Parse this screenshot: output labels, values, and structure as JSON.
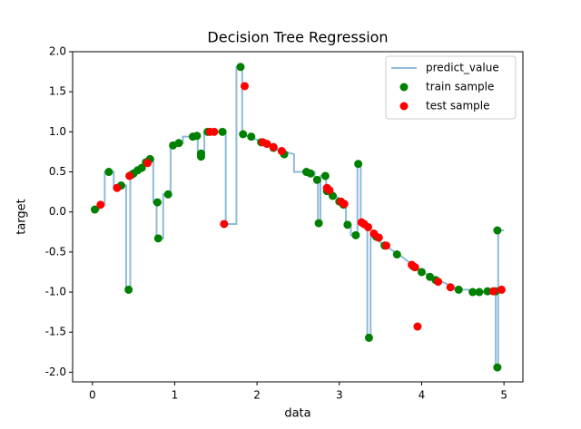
{
  "chart_data": {
    "type": "combo",
    "title": "Decision Tree Regression",
    "x_label": "data",
    "y_label": "target",
    "xlim": [
      -0.24,
      5.23
    ],
    "ylim": [
      -2.12,
      2.0
    ],
    "xticks": [
      0,
      1,
      2,
      3,
      4,
      5
    ],
    "yticks": [
      {
        "value": -2,
        "label": "-2.0"
      },
      -1.5,
      {
        "value": -1,
        "label": "-1.0"
      },
      -0.5,
      {
        "value": 0,
        "label": "0.0"
      },
      0.5,
      {
        "value": 1,
        "label": "1.0"
      },
      1.5,
      {
        "value": 2,
        "label": "2.0"
      }
    ],
    "legend": "upper right",
    "series": [
      {
        "name": "predict_value",
        "type": "line",
        "color": "#1f77b4",
        "x": [
          0,
          0.08,
          0.08,
          0.15,
          0.15,
          0.26,
          0.26,
          0.33,
          0.33,
          0.41,
          0.41,
          0.46,
          0.46,
          0.52,
          0.58,
          0.64,
          0.74,
          0.74,
          0.78,
          0.78,
          0.86,
          0.86,
          0.95,
          0.95,
          1.02,
          1.1,
          1.1,
          1.18,
          1.28,
          1.28,
          1.36,
          1.36,
          1.62,
          1.62,
          1.75,
          1.75,
          1.82,
          1.82,
          1.9,
          2.0,
          2.1,
          2.25,
          2.45,
          2.45,
          2.7,
          2.7,
          2.74,
          2.74,
          2.77,
          2.77,
          2.84,
          2.84,
          2.95,
          3.08,
          3.08,
          3.14,
          3.14,
          3.22,
          3.22,
          3.26,
          3.26,
          3.34,
          3.34,
          3.38,
          3.38,
          3.5,
          3.6,
          3.75,
          3.9,
          4.05,
          4.2,
          4.4,
          4.4,
          4.55,
          4.75,
          4.9,
          4.9,
          4.93,
          4.93,
          5.0
        ],
        "values": [
          0.03,
          0.03,
          0.1,
          0.1,
          0.5,
          0.5,
          0.3,
          0.3,
          0.33,
          0.33,
          -0.97,
          -0.97,
          0.46,
          0.5,
          0.55,
          0.6,
          0.66,
          0.12,
          0.12,
          -0.33,
          -0.33,
          0.22,
          0.22,
          0.83,
          0.86,
          0.86,
          0.94,
          0.94,
          0.95,
          0.71,
          0.71,
          1.0,
          1.0,
          -0.15,
          -0.15,
          1.81,
          1.81,
          0.97,
          0.94,
          0.9,
          0.85,
          0.78,
          0.72,
          0.5,
          0.5,
          0.4,
          0.4,
          -0.14,
          -0.14,
          0.45,
          0.45,
          0.26,
          0.2,
          0.11,
          -0.16,
          -0.16,
          -0.29,
          -0.29,
          0.6,
          0.6,
          -0.15,
          -0.15,
          -1.57,
          -1.57,
          -0.3,
          -0.38,
          -0.45,
          -0.55,
          -0.67,
          -0.77,
          -0.85,
          -0.94,
          -0.97,
          -0.97,
          -1.0,
          -0.99,
          -1.94,
          -1.94,
          -0.23,
          -0.23
        ]
      },
      {
        "name": "train sample",
        "type": "scatter",
        "color": "#008000",
        "x": [
          0.03,
          0.2,
          0.35,
          0.44,
          0.47,
          0.5,
          0.55,
          0.6,
          0.65,
          0.7,
          0.79,
          0.8,
          0.92,
          0.98,
          1.05,
          1.22,
          1.27,
          1.32,
          1.32,
          1.4,
          1.58,
          1.8,
          1.83,
          1.93,
          2.05,
          2.2,
          2.33,
          2.6,
          2.65,
          2.73,
          2.75,
          2.83,
          2.85,
          2.92,
          3.0,
          3.05,
          3.1,
          3.2,
          3.23,
          3.3,
          3.36,
          3.45,
          3.55,
          3.7,
          3.9,
          4.0,
          4.1,
          4.17,
          4.45,
          4.62,
          4.7,
          4.8,
          4.9,
          4.92,
          4.92
        ],
        "values": [
          0.03,
          0.5,
          0.33,
          -0.97,
          0.46,
          0.48,
          0.52,
          0.55,
          0.62,
          0.66,
          0.12,
          -0.33,
          0.22,
          0.83,
          0.86,
          0.94,
          0.95,
          0.73,
          0.69,
          1.0,
          1.0,
          1.81,
          0.97,
          0.94,
          0.87,
          0.8,
          0.72,
          0.5,
          0.48,
          0.4,
          -0.14,
          0.45,
          0.26,
          0.2,
          0.13,
          0.09,
          -0.16,
          -0.29,
          0.6,
          -0.15,
          -1.57,
          -0.31,
          -0.42,
          -0.53,
          -0.68,
          -0.75,
          -0.81,
          -0.85,
          -0.97,
          -1.0,
          -1.0,
          -0.99,
          -0.99,
          -1.94,
          -0.23
        ]
      },
      {
        "name": "test sample",
        "type": "scatter",
        "color": "#ff0000",
        "x": [
          0.1,
          0.3,
          0.45,
          0.67,
          1.43,
          1.48,
          1.6,
          1.85,
          2.07,
          2.12,
          2.2,
          2.3,
          2.85,
          2.88,
          3.02,
          3.06,
          3.27,
          3.3,
          3.35,
          3.42,
          3.48,
          3.57,
          3.88,
          3.92,
          3.95,
          4.2,
          4.35,
          4.87,
          4.97
        ],
        "values": [
          0.09,
          0.3,
          0.45,
          0.61,
          1.0,
          1.0,
          -0.15,
          1.57,
          0.87,
          0.85,
          0.81,
          0.76,
          0.3,
          0.27,
          0.13,
          0.1,
          -0.13,
          -0.15,
          -0.19,
          -0.27,
          -0.32,
          -0.42,
          -0.66,
          -0.69,
          -1.43,
          -0.87,
          -0.94,
          -0.99,
          -0.97
        ]
      }
    ]
  }
}
